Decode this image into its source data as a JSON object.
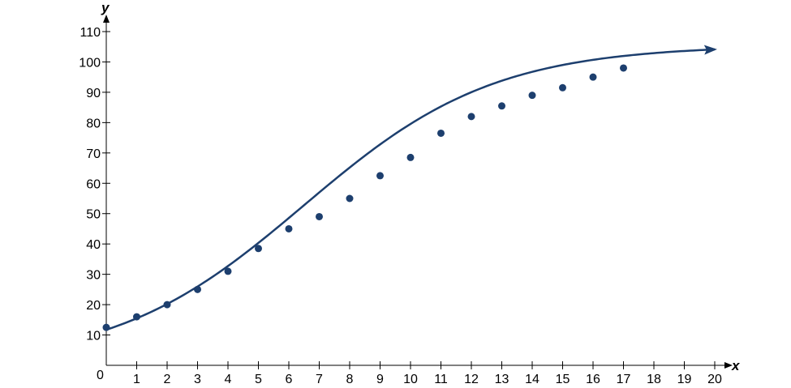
{
  "chart_data": {
    "type": "scatter",
    "title": "",
    "xlabel": "x",
    "ylabel": "y",
    "xlim": [
      0,
      20
    ],
    "ylim": [
      0,
      110
    ],
    "x_ticks": [
      1,
      2,
      3,
      4,
      5,
      6,
      7,
      8,
      9,
      10,
      11,
      12,
      13,
      14,
      15,
      16,
      17,
      18,
      19,
      20
    ],
    "y_ticks": [
      10,
      20,
      30,
      40,
      50,
      60,
      70,
      80,
      90,
      100,
      110
    ],
    "origin_label": "0",
    "grid": false,
    "colors": {
      "series": "#1d3f6e",
      "axis": "#000000"
    },
    "series": [
      {
        "kind": "points",
        "x": [
          0,
          1,
          2,
          3,
          4,
          5,
          6,
          7,
          8,
          9,
          10,
          11,
          12,
          13,
          14,
          15,
          16,
          17
        ],
        "y": [
          12.5,
          16,
          20,
          25,
          31,
          38.5,
          45,
          49,
          55,
          62.5,
          68.5,
          76.5,
          82,
          85.5,
          89,
          91.5,
          95,
          98
        ]
      },
      {
        "kind": "curve",
        "model": "logistic",
        "params": {
          "c": 105.5,
          "a": 8.0,
          "b": 0.32
        },
        "domain": [
          0,
          20
        ],
        "arrow_end": true
      }
    ]
  }
}
